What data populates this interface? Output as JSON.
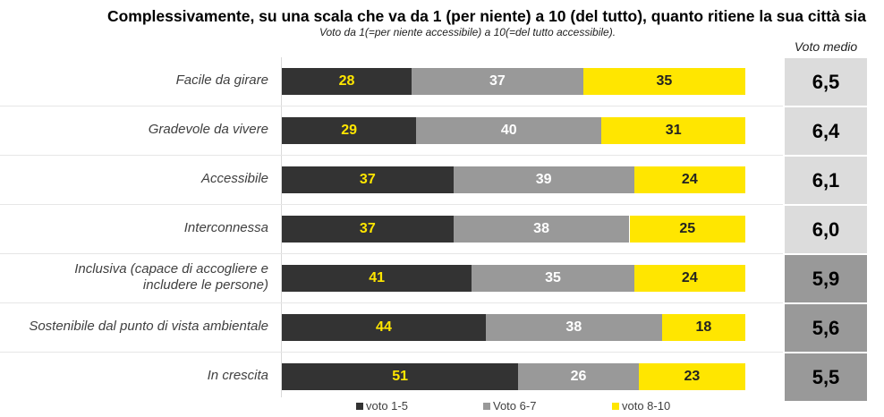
{
  "chart_data": {
    "type": "bar",
    "stacked": true,
    "orientation": "horizontal",
    "title": "Complessivamente, su una scala che va da 1 (per niente) a 10 (del tutto), quanto ritiene la sua città sia",
    "subtitle": "Voto da 1(=per niente accessibile) a 10(=del tutto accessibile).",
    "score_header": "Voto medio",
    "categories": [
      "Facile da girare",
      "Gradevole da vivere",
      "Accessibile",
      "Interconnessa",
      "Inclusiva (capace di accogliere e includere le persone)",
      "Sostenibile dal punto di vista ambientale",
      "In crescita"
    ],
    "series": [
      {
        "name": "voto 1-5",
        "color": "#333333",
        "text_color": "#FFE600",
        "values": [
          28,
          29,
          37,
          37,
          41,
          44,
          51
        ]
      },
      {
        "name": "Voto 6-7",
        "color": "#999999",
        "text_color": "#FFFFFF",
        "values": [
          37,
          40,
          39,
          38,
          35,
          38,
          26
        ]
      },
      {
        "name": "voto 8-10",
        "color": "#FFE600",
        "text_color": "#222222",
        "values": [
          35,
          31,
          24,
          25,
          24,
          18,
          23
        ]
      }
    ],
    "scores": [
      "6,5",
      "6,4",
      "6,1",
      "6,0",
      "5,9",
      "5,6",
      "5,5"
    ],
    "score_colors": [
      "#DCDCDC",
      "#DCDCDC",
      "#DCDCDC",
      "#DCDCDC",
      "#999999",
      "#999999",
      "#999999"
    ],
    "xlim": [
      0,
      100
    ],
    "legend_position": "bottom"
  }
}
